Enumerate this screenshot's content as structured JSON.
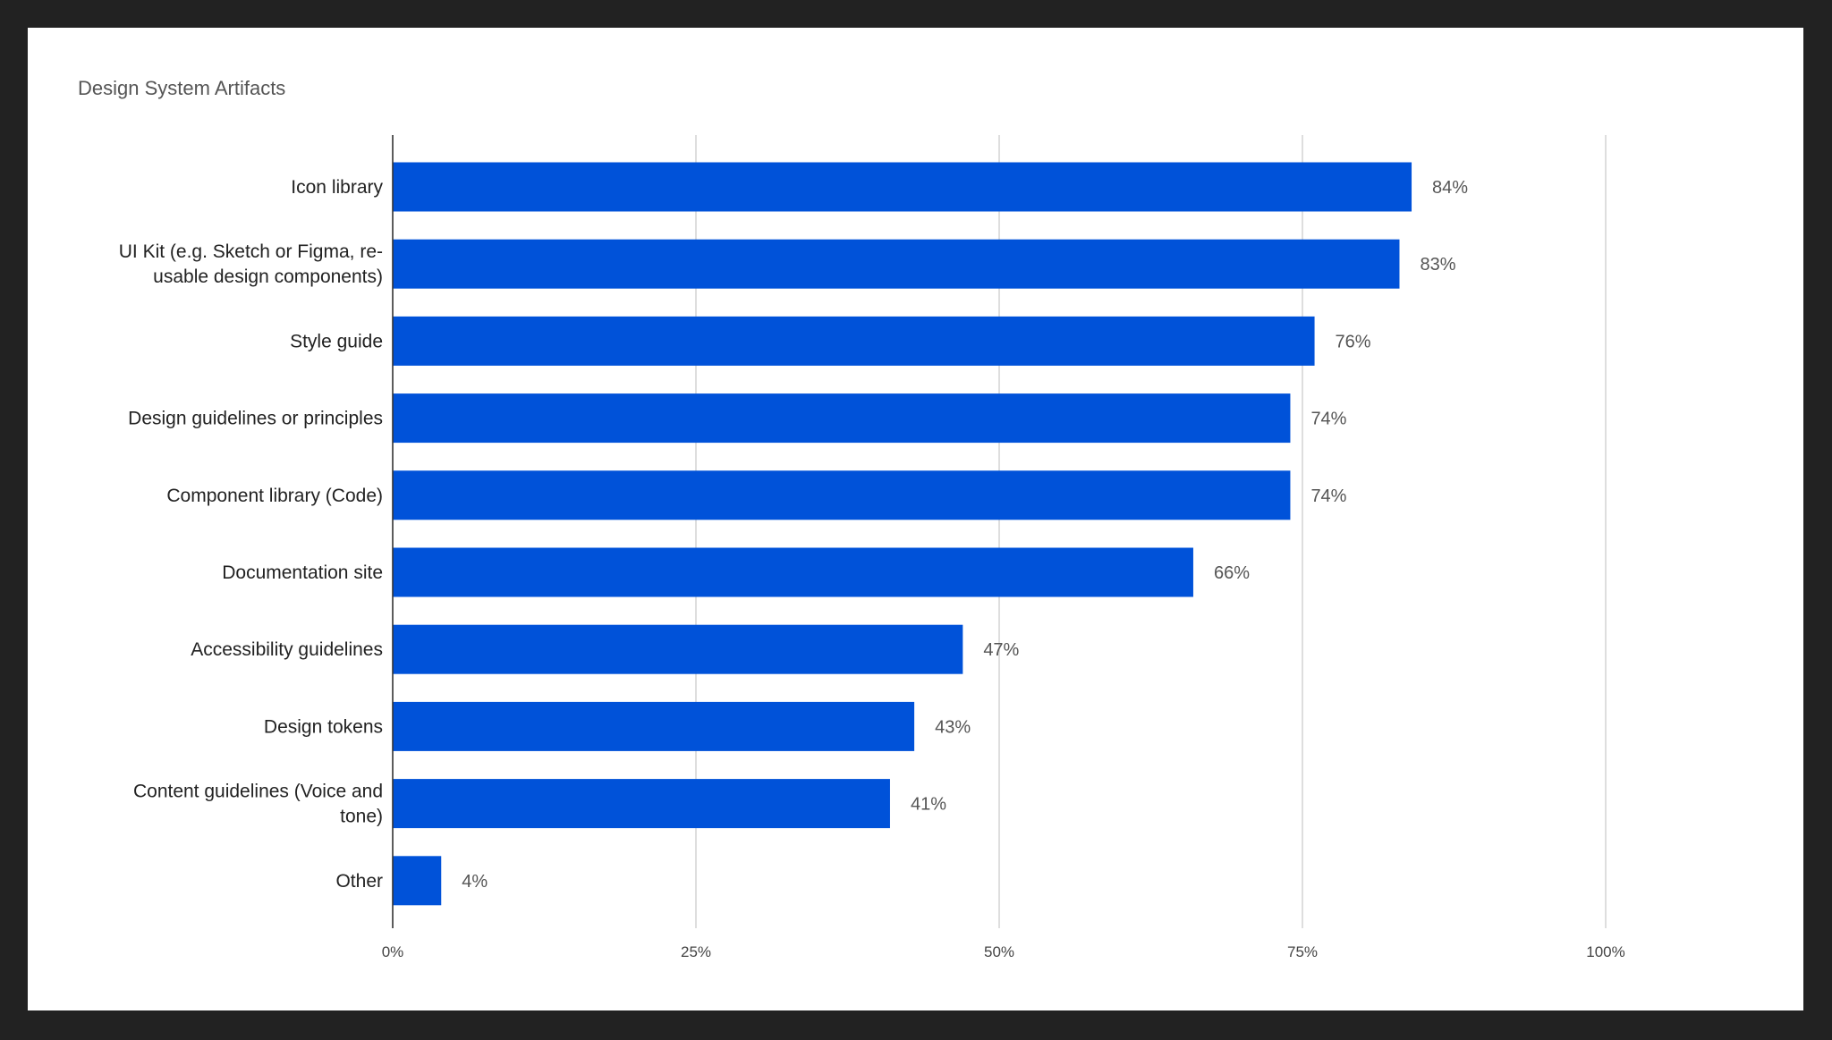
{
  "chart_data": {
    "type": "bar",
    "orientation": "horizontal",
    "title": "Design System Artifacts",
    "xlabel": "",
    "ylabel": "",
    "categories": [
      [
        "Icon library"
      ],
      [
        "UI Kit (e.g. Sketch or Figma, re-",
        "usable design components)"
      ],
      [
        "Style guide"
      ],
      [
        "Design guidelines or principles"
      ],
      [
        "Component library (Code)"
      ],
      [
        "Documentation site"
      ],
      [
        "Accessibility guidelines"
      ],
      [
        "Design tokens"
      ],
      [
        "Content guidelines (Voice and",
        "tone)"
      ],
      [
        "Other"
      ]
    ],
    "values": [
      84,
      83,
      76,
      74,
      74,
      66,
      47,
      43,
      41,
      4
    ],
    "data_labels": [
      "84%",
      "83%",
      "76%",
      "74%",
      "74%",
      "66%",
      "47%",
      "43%",
      "41%",
      "4%"
    ],
    "xlim": [
      0,
      100
    ],
    "x_ticks": [
      0,
      25,
      50,
      75,
      100
    ],
    "x_tick_labels": [
      "0%",
      "25%",
      "50%",
      "75%",
      "100%"
    ],
    "grid": true,
    "legend": "none",
    "bar_color": "#0052D9",
    "background": "#FFFFFF",
    "frame_color": "#222222"
  }
}
